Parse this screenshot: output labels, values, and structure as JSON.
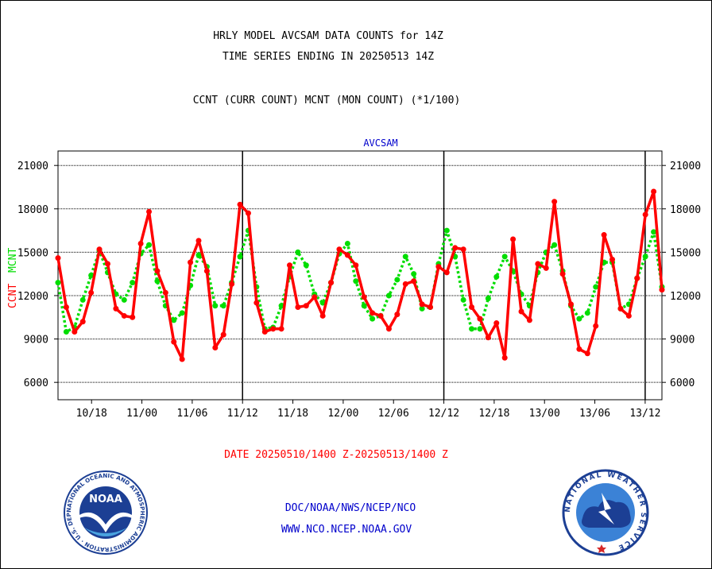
{
  "header": {
    "title_line1": "HRLY MODEL AVCSAM DATA COUNTS for 14Z",
    "title_line2": "TIME SERIES ENDING IN 20250513 14Z",
    "subtitle": "CCNT (CURR COUNT) MCNT (MON COUNT) (*1/100)"
  },
  "footer": {
    "date_range": "DATE 20250510/1400 Z-20250513/1400 Z",
    "org_line": "DOC/NOAA/NWS/NCEP/NCO",
    "url_line": "WWW.NCO.NCEP.NOAA.GOV",
    "noaa_logo_text": "NOAA",
    "noaa_ring_text": "NATIONAL OCEANIC AND ATMOSPHERIC ADMINISTRATION · U.S. DEPARTMENT OF COMMERCE ·",
    "nws_ring_text": "NATIONAL WEATHER SERVICE"
  },
  "colors": {
    "ccnt": "#ff0000",
    "mcnt": "#00dd00",
    "title_blue": "#0000cc",
    "date_red": "#ff0000",
    "footer_blue": "#0000cc"
  },
  "chart_data": {
    "type": "line",
    "title": "AVCSAM",
    "ylabel_left_ccnt": "CCNT",
    "ylabel_left_mcnt": "MCNT",
    "ylim": [
      4800,
      22000
    ],
    "yticks": [
      6000,
      9000,
      12000,
      15000,
      18000,
      21000
    ],
    "ytick_labels": [
      "6000",
      "9000",
      "12000",
      "15000",
      "18000",
      "21000"
    ],
    "grid": true,
    "xtick_labels": [
      "10/18",
      "11/00",
      "11/06",
      "11/12",
      "11/18",
      "12/00",
      "12/06",
      "12/12",
      "12/18",
      "13/00",
      "13/06",
      "13/12"
    ],
    "xtick_hours": [
      4,
      10,
      16,
      22,
      28,
      34,
      40,
      46,
      52,
      58,
      64,
      70
    ],
    "day_boundaries": [
      22,
      46,
      70
    ],
    "x_hours_range": [
      0,
      72
    ],
    "series": [
      {
        "name": "CCNT",
        "values": [
          14600,
          11200,
          9500,
          10200,
          12200,
          15200,
          14200,
          11100,
          10600,
          10500,
          15600,
          17800,
          13700,
          12200,
          8800,
          7600,
          14300,
          15800,
          13700,
          8400,
          9300,
          12800,
          18300,
          17700,
          11500,
          9500,
          9700,
          9700,
          14100,
          11200,
          11300,
          11900,
          10600,
          12900,
          15200,
          14800,
          14100,
          11900,
          10800,
          10600,
          9700,
          10700,
          12800,
          13000,
          11400,
          11200,
          14000,
          13600,
          15300,
          15200,
          11200,
          10400,
          9100,
          10100,
          7700,
          15900,
          10900,
          10300,
          14200,
          13900,
          18500,
          13500,
          11400,
          8300,
          8000,
          9900,
          16200,
          14500,
          11100,
          10600,
          13200,
          17600,
          19200,
          12400
        ]
      },
      {
        "name": "MCNT",
        "values": [
          12900,
          9500,
          9800,
          11700,
          13400,
          15100,
          13600,
          12100,
          11700,
          12900,
          14900,
          15500,
          13000,
          11300,
          10300,
          10800,
          12700,
          14800,
          14000,
          11300,
          11300,
          12900,
          14700,
          16500,
          12600,
          9700,
          9800,
          11300,
          13300,
          15000,
          14100,
          12100,
          11500,
          12900,
          14900,
          15600,
          13000,
          11300,
          10400,
          10600,
          12000,
          13100,
          14700,
          13500,
          11100,
          11200,
          14200,
          16500,
          14700,
          11700,
          9700,
          9700,
          11800,
          13300,
          14700,
          13700,
          12100,
          11300,
          13600,
          15000,
          15500,
          13700,
          11300,
          10400,
          10800,
          12600,
          14300,
          14300,
          11100,
          11400,
          13200,
          14700,
          16400,
          12600
        ]
      }
    ]
  }
}
